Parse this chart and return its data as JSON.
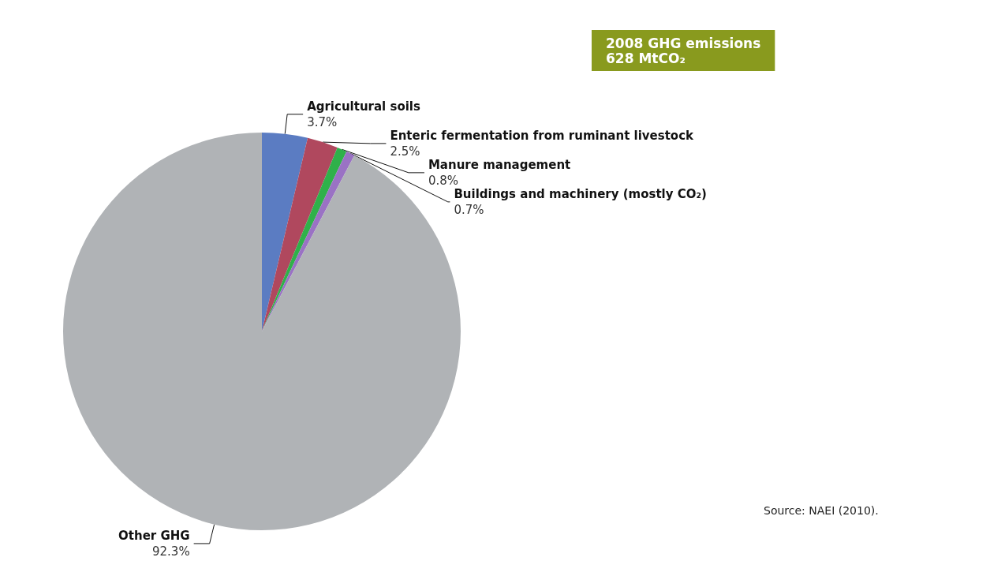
{
  "chart_data": {
    "type": "pie",
    "title": "2008 GHG emissions",
    "subtitle": "628 MtCO₂",
    "categories": [
      "Agricultural soils",
      "Enteric fermentation from ruminant livestock",
      "Manure management",
      "Buildings and machinery (mostly CO₂)",
      "Other GHG"
    ],
    "values": [
      3.7,
      2.5,
      0.8,
      0.7,
      92.3
    ],
    "value_labels": [
      "3.7%",
      "2.5%",
      "0.8%",
      "0.7%",
      "92.3%"
    ],
    "colors": [
      "#5b7cc2",
      "#b0485e",
      "#2fb14a",
      "#9a72c4",
      "#b0b3b6"
    ],
    "annotations": [
      "Source: NAEI (2010)."
    ],
    "legend": false
  }
}
